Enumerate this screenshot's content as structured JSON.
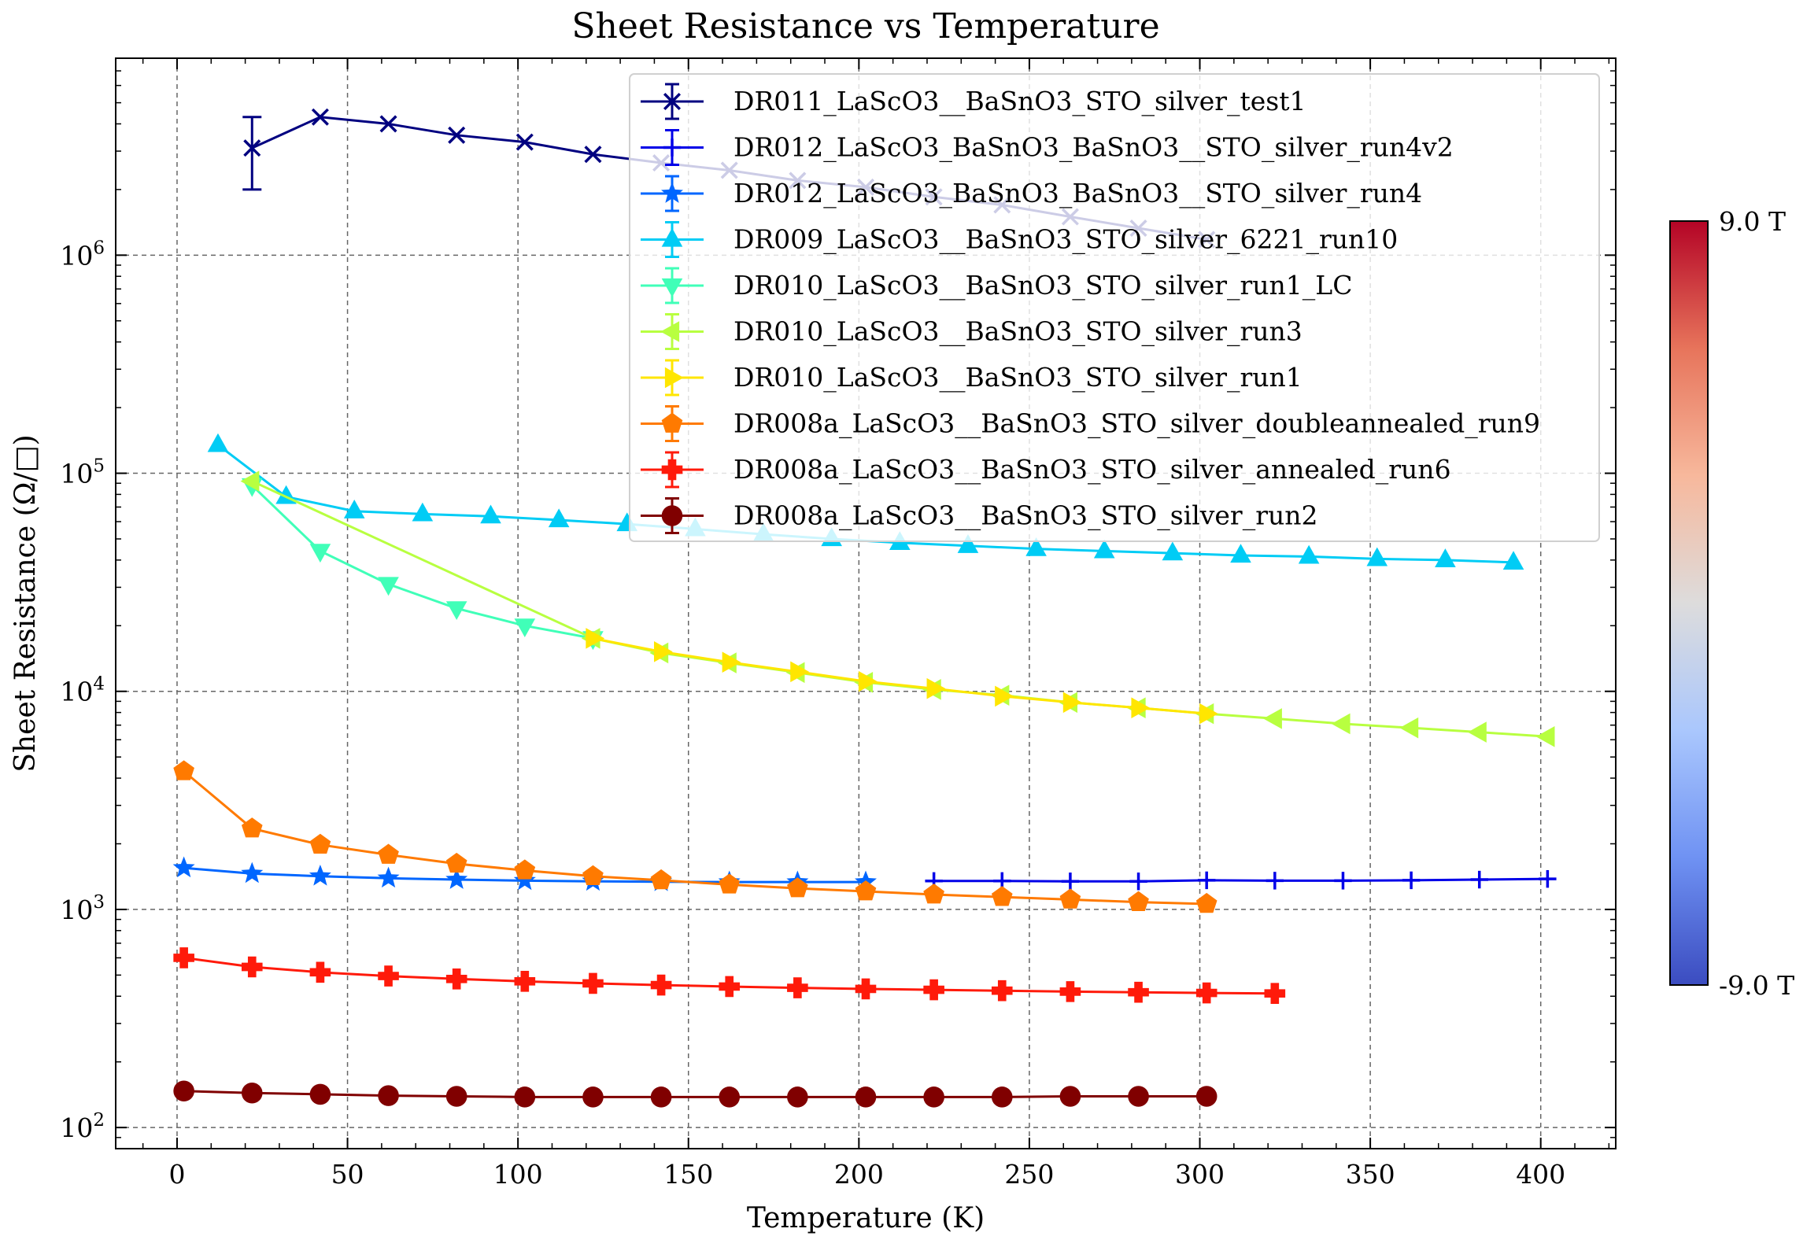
{
  "chart_data": {
    "type": "line",
    "title": "Sheet Resistance vs Temperature",
    "xlabel": "Temperature (K)",
    "ylabel": "Sheet Resistance (Ω/□)",
    "xlim": [
      -18,
      422
    ],
    "ylim": [
      80,
      8000000
    ],
    "yscale": "log",
    "grid": true,
    "legend_position": "top-right",
    "x_ticks": [
      "0",
      "50",
      "100",
      "150",
      "200",
      "250",
      "300",
      "350",
      "400"
    ],
    "y_ticks": [
      {
        "value": 100,
        "base": "10",
        "exp": "2"
      },
      {
        "value": 1000,
        "base": "10",
        "exp": "3"
      },
      {
        "value": 10000,
        "base": "10",
        "exp": "4"
      },
      {
        "value": 100000,
        "base": "10",
        "exp": "5"
      },
      {
        "value": 1000000,
        "base": "10",
        "exp": "6"
      }
    ],
    "colorbar": {
      "min_label": "-9.0 T",
      "max_label": "9.0 T",
      "colors": [
        "#3b4cc0",
        "#6f92f3",
        "#aac7fd",
        "#dddcdc",
        "#f7b89c",
        "#e7745b",
        "#b40426"
      ]
    },
    "series": [
      {
        "name": "DR011_LaScO3__BaSnO3_STO_silver_test1",
        "color": "#000080",
        "marker": "x",
        "x": [
          22,
          42,
          62,
          82,
          102,
          122,
          142,
          162,
          182,
          202,
          222,
          242,
          262,
          282,
          302
        ],
        "y": [
          3100000,
          4300000,
          4000000,
          3550000,
          3300000,
          2900000,
          2650000,
          2450000,
          2200000,
          2050000,
          1850000,
          1700000,
          1500000,
          1330000,
          1180000
        ],
        "error": {
          "index": 0,
          "low": 2000000,
          "high": 4300000
        }
      },
      {
        "name": "DR012_LaScO3_BaSnO3_BaSnO3__STO_silver_run4v2",
        "color": "#0000e8",
        "marker": "+",
        "x": [
          222,
          242,
          262,
          282,
          302,
          322,
          342,
          362,
          382,
          402
        ],
        "y": [
          1350,
          1350,
          1345,
          1345,
          1360,
          1355,
          1355,
          1360,
          1370,
          1380
        ]
      },
      {
        "name": "DR012_LaScO3_BaSnO3_BaSnO3__STO_silver_run4",
        "color": "#0066ff",
        "marker": "star",
        "x": [
          2,
          22,
          42,
          62,
          82,
          102,
          122,
          142,
          162,
          182,
          202
        ],
        "y": [
          1550,
          1460,
          1420,
          1390,
          1370,
          1355,
          1345,
          1340,
          1335,
          1335,
          1335
        ]
      },
      {
        "name": "DR009_LaScO3__BaSnO3_STO_silver_6221_run10",
        "color": "#00ccf5",
        "marker": "triangle-up",
        "x": [
          12,
          32,
          52,
          72,
          92,
          112,
          132,
          152,
          172,
          192,
          212,
          232,
          252,
          272,
          292,
          312,
          332,
          352,
          372,
          392
        ],
        "y": [
          135000,
          78000,
          67000,
          65000,
          63500,
          61000,
          58500,
          55500,
          52500,
          50000,
          48000,
          46500,
          45000,
          44000,
          43000,
          42000,
          41500,
          40500,
          40000,
          39000
        ]
      },
      {
        "name": "DR010_LaScO3__BaSnO3_STO_silver_run1_LC",
        "color": "#40ffb8",
        "marker": "triangle-down",
        "x": [
          22,
          42,
          62,
          82,
          102,
          122
        ],
        "y": [
          88000,
          44000,
          31000,
          24000,
          20000,
          17500
        ]
      },
      {
        "name": "DR010_LaScO3__BaSnO3_STO_silver_run3",
        "color": "#b8ff40",
        "marker": "triangle-left",
        "x": [
          22,
          122,
          142,
          162,
          182,
          202,
          222,
          242,
          262,
          282,
          302,
          322,
          342,
          362,
          382,
          402
        ],
        "y": [
          92000,
          17500,
          15000,
          13500,
          12200,
          11000,
          10200,
          9600,
          8900,
          8400,
          7900,
          7500,
          7100,
          6800,
          6500,
          6200
        ]
      },
      {
        "name": "DR010_LaScO3__BaSnO3_STO_silver_run1",
        "color": "#ffe600",
        "marker": "triangle-right",
        "x": [
          122,
          142,
          162,
          182,
          202,
          222,
          242,
          262,
          282,
          302
        ],
        "y": [
          17500,
          15200,
          13600,
          12300,
          11100,
          10300,
          9500,
          8900,
          8400,
          7900
        ]
      },
      {
        "name": "DR008a_LaScO3__BaSnO3_STO_silver_doubleannealed_run9",
        "color": "#ff7a00",
        "marker": "pentagon",
        "x": [
          2,
          22,
          42,
          62,
          82,
          102,
          122,
          142,
          162,
          182,
          202,
          222,
          242,
          262,
          282,
          302
        ],
        "y": [
          4300,
          2350,
          1980,
          1780,
          1620,
          1510,
          1420,
          1360,
          1300,
          1250,
          1210,
          1170,
          1140,
          1110,
          1080,
          1060
        ]
      },
      {
        "name": "DR008a_LaScO3__BaSnO3_STO_silver_annealed_run6",
        "color": "#ff1a0a",
        "marker": "plus-filled",
        "x": [
          2,
          22,
          42,
          62,
          82,
          102,
          122,
          142,
          162,
          182,
          202,
          222,
          242,
          262,
          282,
          302,
          322
        ],
        "y": [
          600,
          545,
          515,
          495,
          480,
          468,
          458,
          450,
          443,
          437,
          432,
          428,
          424,
          420,
          417,
          414,
          412
        ]
      },
      {
        "name": "DR008a_LaScO3__BaSnO3_STO_silver_run2",
        "color": "#800000",
        "marker": "circle",
        "x": [
          2,
          22,
          42,
          62,
          82,
          102,
          122,
          142,
          162,
          182,
          202,
          222,
          242,
          262,
          282,
          302
        ],
        "y": [
          147,
          144,
          142,
          140,
          139,
          138,
          138,
          138,
          138,
          138,
          138,
          138,
          138,
          139,
          139,
          139
        ]
      }
    ]
  }
}
